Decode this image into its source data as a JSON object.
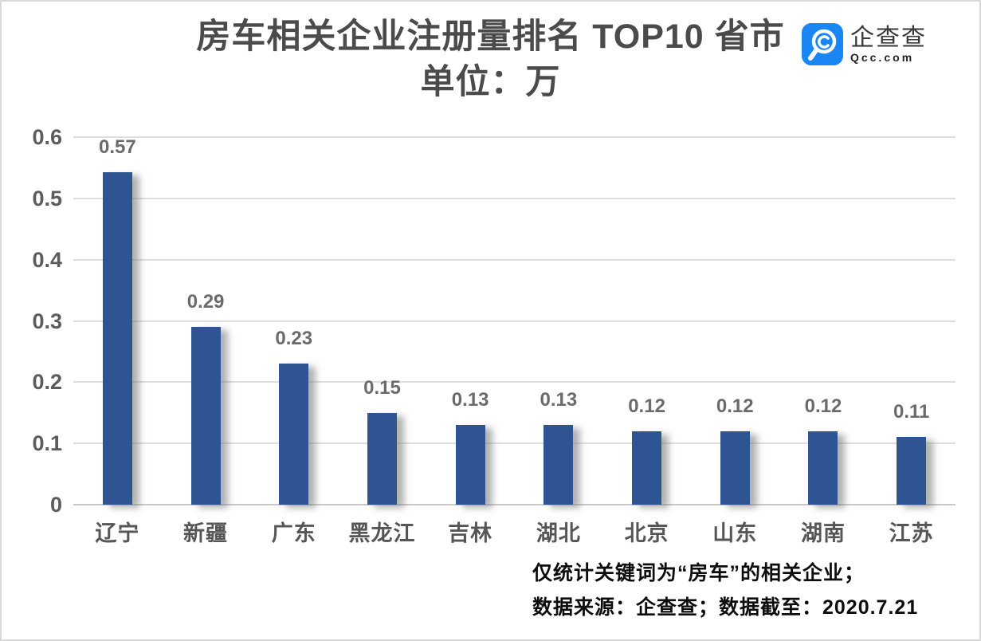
{
  "chart_data": {
    "type": "bar",
    "title": "房车相关企业注册量排名 TOP10 省市",
    "subtitle": "单位：万",
    "categories": [
      "辽宁",
      "新疆",
      "广东",
      "黑龙江",
      "吉林",
      "湖北",
      "北京",
      "山东",
      "湖南",
      "江苏"
    ],
    "values": [
      0.57,
      0.29,
      0.23,
      0.15,
      0.13,
      0.13,
      0.12,
      0.12,
      0.12,
      0.11
    ],
    "value_labels": [
      "0.57",
      "0.29",
      "0.23",
      "0.15",
      "0.13",
      "0.13",
      "0.12",
      "0.12",
      "0.12",
      "0.11"
    ],
    "ylim": [
      0,
      0.6
    ],
    "yticks": [
      0,
      0.1,
      0.2,
      0.3,
      0.4,
      0.5,
      0.6
    ],
    "ytick_labels": [
      "0",
      "0.1",
      "0.2",
      "0.3",
      "0.4",
      "0.5",
      "0.6"
    ],
    "grid": "horizontal",
    "legend": "none",
    "bar_color": "#2f5494"
  },
  "logo": {
    "name": "企查查",
    "domain": "Qcc.com",
    "brand_color": "#1a86f3"
  },
  "footnotes": [
    "仅统计关键词为“房车”的相关企业；",
    "数据来源：企查查；数据截至：2020.7.21"
  ]
}
